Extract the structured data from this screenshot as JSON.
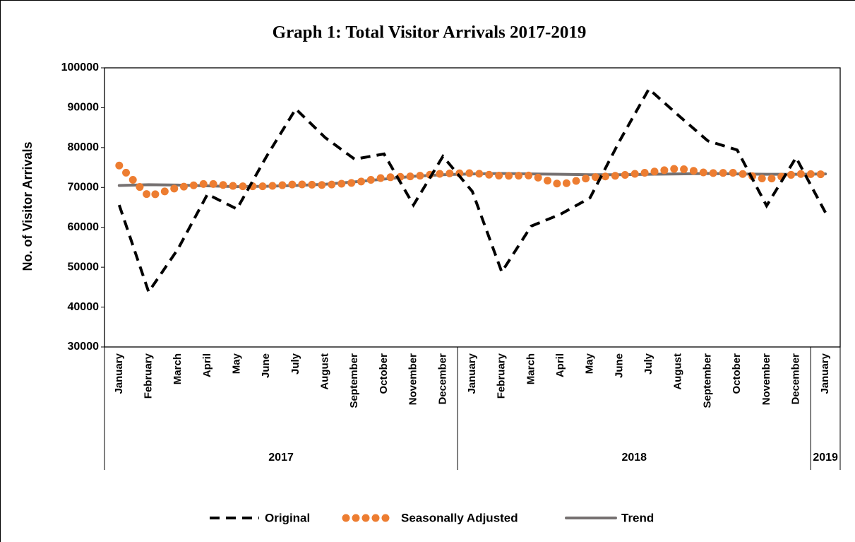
{
  "chart_data": {
    "type": "line",
    "title": "Graph 1: Total Visitor Arrivals 2017-2019",
    "y_label": "No. of Visitor Arrivals",
    "groups": [
      {
        "label": "2017",
        "categories": [
          "January",
          "February",
          "March",
          "April",
          "May",
          "June",
          "July",
          "August",
          "September",
          "October",
          "November",
          "December"
        ]
      },
      {
        "label": "2018",
        "categories": [
          "January",
          "February",
          "March",
          "April",
          "May",
          "June",
          "July",
          "August",
          "September",
          "October",
          "November",
          "December"
        ]
      },
      {
        "label": "2019",
        "categories": [
          "January"
        ]
      }
    ],
    "ylim": [
      30000,
      100000
    ],
    "yticks": [
      30000,
      40000,
      50000,
      60000,
      70000,
      80000,
      90000,
      100000
    ],
    "grid": false,
    "legend": "bottom",
    "series": [
      {
        "name": "Original",
        "color": "#000000",
        "style": "dashed",
        "values": [
          65600,
          43800,
          54600,
          68300,
          64600,
          77700,
          89700,
          82500,
          77100,
          78400,
          65600,
          77800,
          69000,
          48800,
          60300,
          63300,
          67400,
          81600,
          94700,
          88100,
          81700,
          79400,
          65400,
          77500,
          63700
        ]
      },
      {
        "name": "Seasonally Adjusted",
        "color": "#ed7d31",
        "style": "dotted",
        "values": [
          75500,
          67800,
          70000,
          71000,
          70300,
          70300,
          70800,
          70600,
          71200,
          72500,
          72800,
          73500,
          73600,
          72900,
          73000,
          70700,
          72500,
          73000,
          73800,
          74800,
          73600,
          73700,
          72000,
          73400,
          73300
        ]
      },
      {
        "name": "Trend",
        "color": "#767171",
        "style": "solid",
        "values": [
          70500,
          70700,
          70600,
          70400,
          70200,
          70300,
          70500,
          70800,
          71400,
          72100,
          72800,
          73200,
          73400,
          73500,
          73400,
          73300,
          73200,
          73200,
          73300,
          73400,
          73500,
          73400,
          73300,
          73300,
          73400
        ]
      }
    ]
  }
}
